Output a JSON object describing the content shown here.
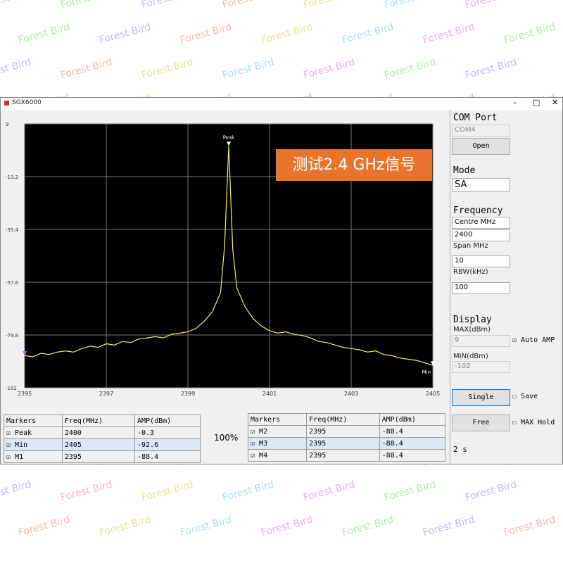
{
  "window_title": "SGX6000",
  "watermark": "Forest Bird",
  "overlay_text": "测试2.4 GHz信号",
  "spectrum": {
    "type": "line",
    "color": "#f0f060",
    "x": [
      2395.0,
      2395.2,
      2395.4,
      2395.6,
      2395.8,
      2396.0,
      2396.2,
      2396.4,
      2396.6,
      2396.8,
      2397.0,
      2397.2,
      2397.4,
      2397.6,
      2397.8,
      2398.0,
      2398.2,
      2398.4,
      2398.6,
      2398.8,
      2399.0,
      2399.2,
      2399.4,
      2399.6,
      2399.8,
      2399.9,
      2400.0,
      2400.1,
      2400.2,
      2400.4,
      2400.6,
      2400.8,
      2401.0,
      2401.2,
      2401.4,
      2401.6,
      2401.8,
      2402.0,
      2402.2,
      2402.4,
      2402.6,
      2402.8,
      2403.0,
      2403.2,
      2403.4,
      2403.6,
      2403.8,
      2404.0,
      2404.2,
      2404.4,
      2404.6,
      2404.8,
      2405.0
    ],
    "values": [
      -88.4,
      -89,
      -87.5,
      -88,
      -87,
      -86.5,
      -87,
      -85.5,
      -84.5,
      -85,
      -83.5,
      -84,
      -82.5,
      -83,
      -81.5,
      -81,
      -80.5,
      -81,
      -79.5,
      -79,
      -78.5,
      -77,
      -74,
      -70,
      -62,
      -42,
      -0.3,
      -44,
      -60,
      -68,
      -73,
      -76,
      -78,
      -79,
      -78.5,
      -79.5,
      -80,
      -81,
      -82.5,
      -83,
      -84,
      -85,
      -85.5,
      -86,
      -87,
      -86.5,
      -88,
      -88.5,
      -89.5,
      -90,
      -90.5,
      -91.5,
      -92.6
    ],
    "xlim": [
      2395,
      2405
    ],
    "xticks": [
      2395,
      2397,
      2399,
      2401,
      2403,
      2405
    ],
    "ylim": [
      -102,
      9
    ],
    "yticks": [
      9,
      -13.2,
      -35.4,
      -57.6,
      -79.8,
      -102
    ],
    "grid": true,
    "peak_label": "Peak",
    "min_label": "Min"
  },
  "panel": {
    "com_port": "COM Port",
    "com_value": "COM4",
    "open": "Open",
    "mode": "Mode",
    "mode_value": "SA",
    "frequency": "Frequency",
    "centre": "Centre MHz",
    "centre_value": "2400",
    "span": "Span MHz",
    "span_value": "10",
    "rbw": "RBW(kHz)",
    "rbw_value": "100",
    "display": "Display",
    "max": "MAX(dBm)",
    "max_value": "9",
    "auto_amp": "Auto AMP",
    "min": "MIN(dBm)",
    "min_value": "-102",
    "single": "Single",
    "save": "Save",
    "free": "Free",
    "max_hold": "MAX Hold",
    "interval": "2 s"
  },
  "progress": "100%",
  "table_left": {
    "header": [
      "Markers",
      "Freq(MHz)",
      "AMP(dBm)"
    ],
    "rows": [
      [
        "Peak",
        2400,
        -0.3
      ],
      [
        "Min",
        2405,
        -92.6
      ],
      [
        "M1",
        2395,
        -88.4
      ]
    ]
  },
  "table_right": {
    "header": [
      "Markers",
      "Freq(MHz)",
      "AMP(dBm)"
    ],
    "rows": [
      [
        "M2",
        2395,
        -88.4
      ],
      [
        "M3",
        2395,
        -88.4
      ],
      [
        "M4",
        2395,
        -88.4
      ]
    ]
  }
}
